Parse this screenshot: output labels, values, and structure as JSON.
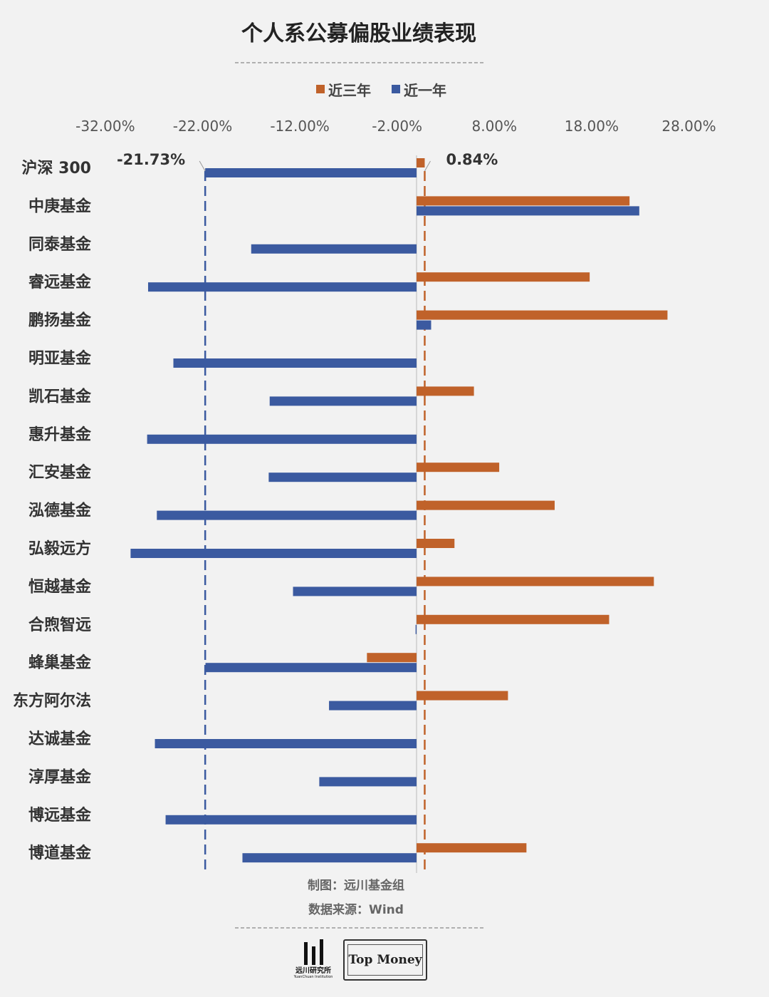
{
  "title": "个人系公募偏股业绩表现",
  "legend": [
    {
      "label": "近三年",
      "color": "#c0622a"
    },
    {
      "label": "近一年",
      "color": "#3b5aa0"
    }
  ],
  "chart_data": {
    "type": "bar",
    "orientation": "horizontal",
    "xlim": [
      -32,
      32
    ],
    "ticks": [
      "-32.00%",
      "-22.00%",
      "-12.00%",
      "-2.00%",
      "8.00%",
      "18.00%",
      "28.00%"
    ],
    "tick_values": [
      -32,
      -22,
      -12,
      -2,
      8,
      18,
      28
    ],
    "categories": [
      "沪深 300",
      "中庚基金",
      "同泰基金",
      "睿远基金",
      "鹏扬基金",
      "明亚基金",
      "凯石基金",
      "惠升基金",
      "汇安基金",
      "泓德基金",
      "弘毅远方",
      "恒越基金",
      "合煦智远",
      "蜂巢基金",
      "东方阿尔法",
      "达诚基金",
      "淳厚基金",
      "博远基金",
      "博道基金"
    ],
    "series": [
      {
        "name": "近三年",
        "color": "#c0622a",
        "values": [
          0.84,
          21.9,
          null,
          17.8,
          25.8,
          null,
          5.9,
          null,
          8.5,
          14.2,
          3.9,
          24.4,
          19.8,
          -5.1,
          9.4,
          null,
          null,
          null,
          11.3
        ]
      },
      {
        "name": "近一年",
        "color": "#3b5aa0",
        "values": [
          -21.73,
          22.9,
          -17.0,
          -27.6,
          1.5,
          -25.0,
          -15.1,
          -27.7,
          -15.2,
          -26.7,
          -29.4,
          -12.7,
          -0.1,
          -21.7,
          -9.0,
          -26.9,
          -10.0,
          -25.8,
          -17.9
        ]
      }
    ],
    "reference_lines": [
      {
        "value": -21.73,
        "label": "-21.73%",
        "color": "#3b5aa0"
      },
      {
        "value": 0.84,
        "label": "0.84%",
        "color": "#c0622a"
      }
    ]
  },
  "footer": {
    "credit": "制图：远川基金组",
    "source": "数据来源：Wind"
  },
  "logos": {
    "yuanchuan": "远川研究所",
    "yuanchuan_en": "YuanChuan Institution",
    "topmoney": "Top Money"
  }
}
